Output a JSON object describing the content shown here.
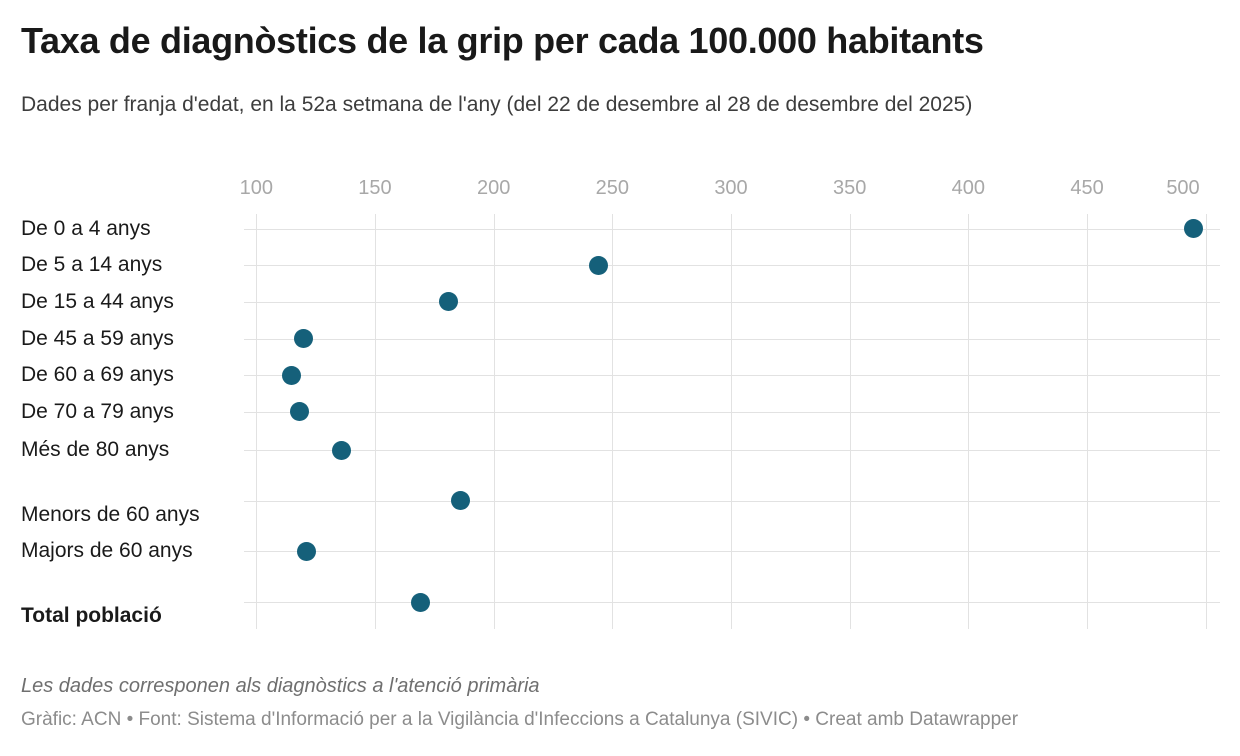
{
  "header": {
    "title": "Taxa de diagnòstics de la grip per cada 100.000 habitants",
    "subtitle": "Dades per franja d'edat, en la 52a setmana de l'any (del 22 de desembre al 28 de desembre del 2025)"
  },
  "chart_data": {
    "type": "scatter",
    "title": "Taxa de diagnòstics de la grip per cada 100.000 habitants",
    "subtitle": "Dades per franja d'edat, en la 52a setmana de l'any (del 22 de desembre al 28 de desembre del 2025)",
    "categories": [
      "De 0 a 4 anys",
      "De 5 a 14 anys",
      "De 15 a 44 anys",
      "De 45 a 59 anys",
      "De 60 a 69 anys",
      "De 70 a 79 anys",
      "Més de 80 anys",
      "Menors de 60 anys",
      "Majors de 60 anys",
      "Total població"
    ],
    "values": [
      495,
      244,
      181,
      120,
      115,
      118,
      136,
      186,
      121,
      169
    ],
    "x_ticks": [
      100,
      150,
      200,
      250,
      300,
      350,
      400,
      450,
      500
    ],
    "xlim": [
      95,
      506
    ],
    "xlabel": "",
    "ylabel": "",
    "grid": true,
    "legend": "none",
    "orientation": "horizontal-dot-plot",
    "group_gap_before": [
      "Menors de 60 anys",
      "Total població"
    ],
    "bold_categories": [
      "Total població"
    ]
  },
  "footer": {
    "note": "Les dades corresponen als diagnòstics a l'atenció primària",
    "byline": "Gràfic: ACN • Font: Sistema d'Informació per a la Vigilància d'Infeccions a Catalunya (SIVIC) • Creat amb Datawrapper"
  },
  "colors": {
    "dot": "#15607a",
    "gridline": "#e2e2e2",
    "axis_label": "#a8a8a8",
    "title": "#191919",
    "subtitle": "#3d3d3d",
    "row_label": "#1a1a1a",
    "note": "#6f6f6f",
    "byline": "#8c8c8c"
  }
}
